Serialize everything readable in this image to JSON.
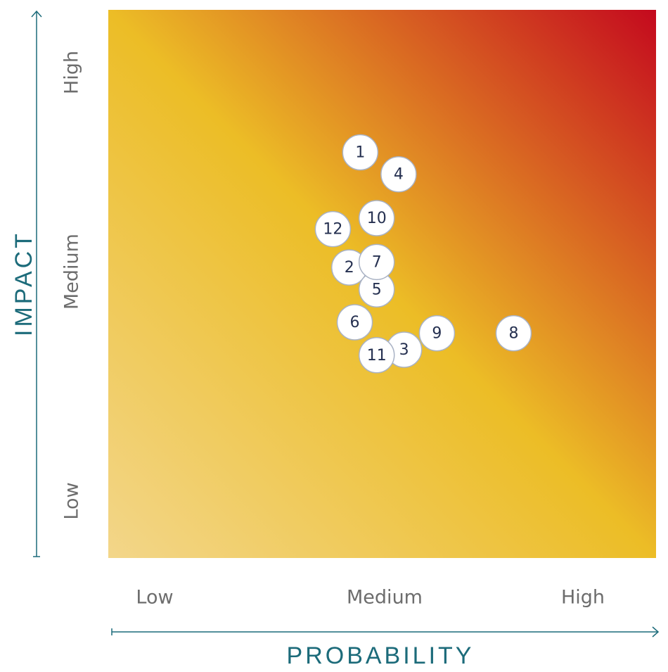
{
  "chart_data": {
    "type": "scatter",
    "xlabel": "PROBABILITY",
    "ylabel": "IMPACT",
    "x_tick_labels": [
      "Low",
      "Medium",
      "High"
    ],
    "y_tick_labels": [
      "Low",
      "Medium",
      "High"
    ],
    "xlim": [
      0,
      10
    ],
    "ylim": [
      0,
      10
    ],
    "grid": false,
    "legend": "none",
    "points": [
      {
        "label": "1",
        "x": 4.6,
        "y": 7.4
      },
      {
        "label": "2",
        "x": 4.4,
        "y": 5.3
      },
      {
        "label": "3",
        "x": 5.4,
        "y": 3.8
      },
      {
        "label": "4",
        "x": 5.3,
        "y": 7.0
      },
      {
        "label": "5",
        "x": 4.9,
        "y": 4.9
      },
      {
        "label": "6",
        "x": 4.5,
        "y": 4.3
      },
      {
        "label": "7",
        "x": 4.9,
        "y": 5.4
      },
      {
        "label": "8",
        "x": 7.4,
        "y": 4.1
      },
      {
        "label": "9",
        "x": 6.0,
        "y": 4.1
      },
      {
        "label": "10",
        "x": 4.9,
        "y": 6.2
      },
      {
        "label": "11",
        "x": 4.9,
        "y": 3.7
      },
      {
        "label": "12",
        "x": 4.1,
        "y": 6.0
      }
    ]
  },
  "colors": {
    "axis": "#1c6b7a",
    "tick_text": "#6d6d6d",
    "marker_fill": "#ffffff",
    "marker_stroke": "#a9b2c4",
    "marker_text": "#253050",
    "gradient_low": "#f3d68a",
    "gradient_mid": "#ecbd26",
    "gradient_high": "#c4091e"
  }
}
